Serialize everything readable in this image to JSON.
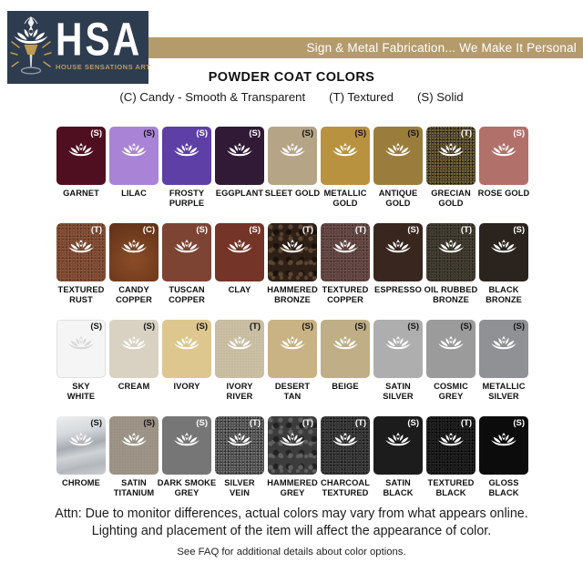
{
  "brand": {
    "navy": "#2e3c4f",
    "gold": "#b49b6c",
    "gold_text": "#bf9a55"
  },
  "header": {
    "logo_abbr": "HSA",
    "logo_name": "HOUSE SENSATIONS ART",
    "banner": "Sign & Metal Fabrication... We Make It Personal",
    "title": "POWDER COAT COLORS",
    "legend": [
      "(C) Candy - Smooth & Transparent",
      "(T) Textured",
      "(S) Solid"
    ]
  },
  "palette": {
    "swatches": [
      {
        "label": "GARNET",
        "code": "(S)",
        "base": "#4f0f20",
        "code_color": "#ffffff",
        "texture": "flat"
      },
      {
        "label": "LILAC",
        "code": "(S)",
        "base": "#a984d6",
        "code_color": "#141414",
        "texture": "flat"
      },
      {
        "label": "FROSTY\nPURPLE",
        "code": "(S)",
        "base": "#5d3fa6",
        "code_color": "#ffffff",
        "texture": "flat"
      },
      {
        "label": "EGGPLANT",
        "code": "(S)",
        "base": "#301a35",
        "code_color": "#ffffff",
        "texture": "flat"
      },
      {
        "label": "SLEET GOLD",
        "code": "(S)",
        "base": "#b5a586",
        "code_color": "#141414",
        "texture": "flat"
      },
      {
        "label": "METALLIC\nGOLD",
        "code": "(S)",
        "base": "#b9923f",
        "code_color": "#141414",
        "texture": "flat"
      },
      {
        "label": "ANTIQUE\nGOLD",
        "code": "(S)",
        "base": "#9a7d3c",
        "code_color": "#141414",
        "texture": "flat"
      },
      {
        "label": "GRECIAN\nGOLD",
        "code": "(T)",
        "base": "#48402a",
        "code_color": "#ffffff",
        "texture": "speckle",
        "speck_light": "#9d8547",
        "speck_dark": "#17130a"
      },
      {
        "label": "ROSE GOLD",
        "code": "(S)",
        "base": "#b1706a",
        "code_color": "#ffffff",
        "texture": "flat"
      },
      {
        "label": "TEXTURED\nRUST",
        "code": "(T)",
        "base": "#7b4730",
        "code_color": "#ffffff",
        "texture": "speckle",
        "speck_light": "#9a6347",
        "speck_dark": "#50301e"
      },
      {
        "label": "CANDY\nCOPPER",
        "code": "(C)",
        "base": "#5f3118",
        "code_color": "#ffffff",
        "texture": "candy",
        "speck_light": "#8c4d27"
      },
      {
        "label": "TUSCAN\nCOPPER",
        "code": "(S)",
        "base": "#7d4434",
        "code_color": "#ffffff",
        "texture": "flat"
      },
      {
        "label": "CLAY",
        "code": "(S)",
        "base": "#753428",
        "code_color": "#ffffff",
        "texture": "flat"
      },
      {
        "label": "HAMMERED\nBRONZE",
        "code": "(T)",
        "base": "#2f2017",
        "code_color": "#ffffff",
        "texture": "hammered",
        "speck_light": "#5d4631",
        "speck_dark": "#1a110b"
      },
      {
        "label": "TEXTURED\nCOPPER",
        "code": "(T)",
        "base": "#5e4340",
        "code_color": "#ffffff",
        "texture": "speckle",
        "speck_light": "#7c5b55",
        "speck_dark": "#3b2b29"
      },
      {
        "label": "ESPRESSO",
        "code": "(S)",
        "base": "#38261f",
        "code_color": "#ffffff",
        "texture": "flat"
      },
      {
        "label": "OIL RUBBED\nBRONZE",
        "code": "(T)",
        "base": "#3a352b",
        "code_color": "#ffffff",
        "texture": "speckle",
        "speck_light": "#575141",
        "speck_dark": "#211e17"
      },
      {
        "label": "BLACK\nBRONZE",
        "code": "(S)",
        "base": "#2b241e",
        "code_color": "#ffffff",
        "texture": "flat"
      },
      {
        "label": "SKY\nWHITE",
        "code": "(S)",
        "base": "#f5f5f5",
        "code_color": "#141414",
        "texture": "flat",
        "border": "#e0e0e0",
        "lotus": "#d8d8d8"
      },
      {
        "label": "CREAM",
        "code": "(S)",
        "base": "#d9d2c3",
        "code_color": "#141414",
        "texture": "flat"
      },
      {
        "label": "IVORY",
        "code": "(S)",
        "base": "#ddc78f",
        "code_color": "#141414",
        "texture": "flat"
      },
      {
        "label": "IVORY\nRIVER",
        "code": "(T)",
        "base": "#cbc0a5",
        "code_color": "#141414",
        "texture": "soft",
        "speck_light": "#b8ab8d"
      },
      {
        "label": "DESERT\nTAN",
        "code": "(S)",
        "base": "#c9b284",
        "code_color": "#141414",
        "texture": "flat"
      },
      {
        "label": "BEIGE",
        "code": "(S)",
        "base": "#bfae86",
        "code_color": "#141414",
        "texture": "flat"
      },
      {
        "label": "SATIN\nSILVER",
        "code": "(S)",
        "base": "#aeaeae",
        "code_color": "#141414",
        "texture": "flat"
      },
      {
        "label": "COSMIC\nGREY",
        "code": "(S)",
        "base": "#9b9b9b",
        "code_color": "#141414",
        "texture": "flat"
      },
      {
        "label": "METALLIC\nSILVER",
        "code": "(S)",
        "base": "#8f9195",
        "code_color": "#141414",
        "texture": "flat"
      },
      {
        "label": "CHROME",
        "code": "(S)",
        "base": "#c3c7cb",
        "code_color": "#141414",
        "texture": "chrome",
        "lotus": "#fafafa"
      },
      {
        "label": "SATIN\nTITANIUM",
        "code": "(S)",
        "base": "#9a9184",
        "code_color": "#141414",
        "texture": "soft",
        "speck_light": "#aaa193"
      },
      {
        "label": "DARK SMOKE\nGREY",
        "code": "(S)",
        "base": "#767676",
        "code_color": "#ffffff",
        "texture": "flat"
      },
      {
        "label": "SILVER\nVEIN",
        "code": "(T)",
        "base": "#4d4d4d",
        "code_color": "#ffffff",
        "texture": "speckle",
        "speck_light": "#909090",
        "speck_dark": "#222222"
      },
      {
        "label": "HAMMERED\nGREY",
        "code": "(T)",
        "base": "#3c3c3c",
        "code_color": "#ffffff",
        "texture": "hammered",
        "speck_light": "#616161",
        "speck_dark": "#212121"
      },
      {
        "label": "CHARCOAL\nTEXTURED",
        "code": "(T)",
        "base": "#313131",
        "code_color": "#ffffff",
        "texture": "speckle",
        "speck_light": "#575757",
        "speck_dark": "#0f0f0f"
      },
      {
        "label": "SATIN\nBLACK",
        "code": "(S)",
        "base": "#1c1c1c",
        "code_color": "#ffffff",
        "texture": "flat"
      },
      {
        "label": "TEXTURED\nBLACK",
        "code": "(T)",
        "base": "#171717",
        "code_color": "#ffffff",
        "texture": "speckle",
        "speck_light": "#343434",
        "speck_dark": "#000000"
      },
      {
        "label": "GLOSS\nBLACK",
        "code": "(S)",
        "base": "#0c0c0c",
        "code_color": "#ffffff",
        "texture": "flat"
      }
    ]
  },
  "footer": {
    "attn": "Attn: Due to monitor differences, actual colors may vary from what appears online.\nLighting and placement of the item will affect the appearance of color.",
    "faq": "See FAQ for additional details about color options."
  }
}
